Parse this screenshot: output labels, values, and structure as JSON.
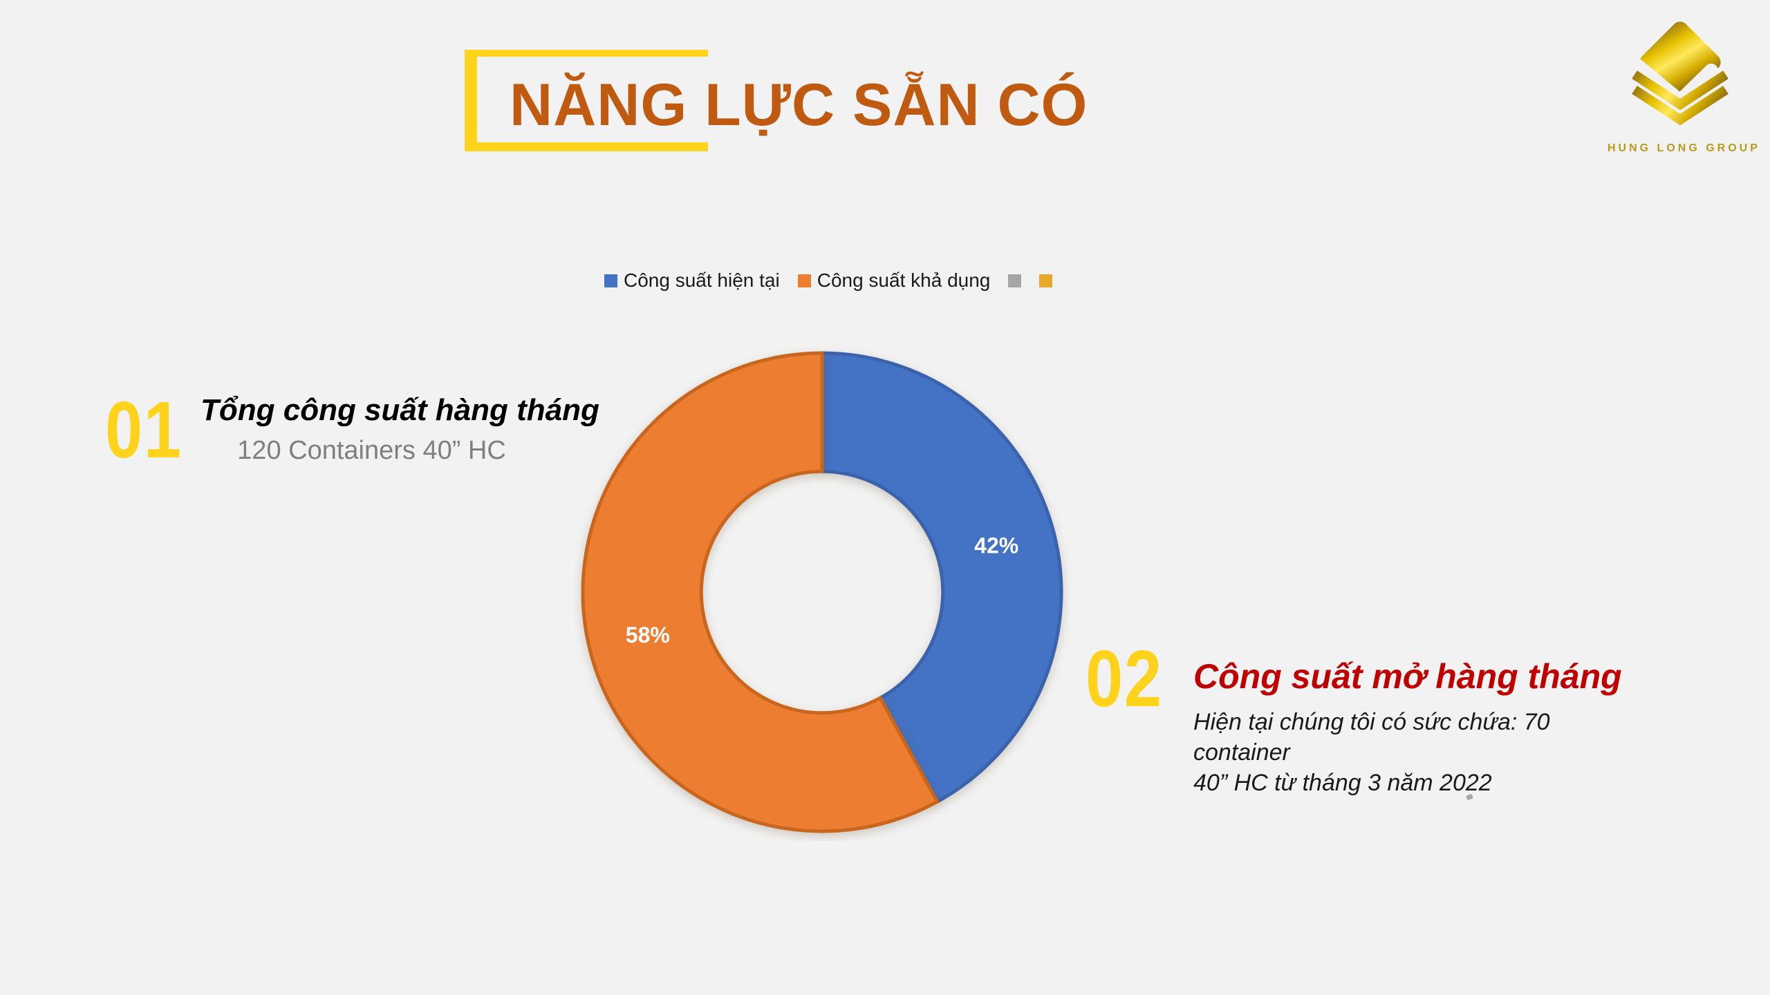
{
  "slide": {
    "background_color": "#F2F2F2",
    "title": "NĂNG LỰC SẴN CÓ",
    "title_color": "#C05A11",
    "bracket_color": "#FFD21C"
  },
  "logo": {
    "company_name": "HUNG LONG GROUP",
    "text_color": "#B99B19",
    "gold_dark": "#8F6E0E",
    "gold_bright": "#FFE95C"
  },
  "legend": {
    "items": [
      {
        "label": "Công suất hiện tại",
        "color": "#4472C4"
      },
      {
        "label": "Công suất khả dụng",
        "color": "#ED7D31"
      },
      {
        "label": "",
        "color": "#A6A6A6"
      },
      {
        "label": "",
        "color": "#E9A82B"
      }
    ]
  },
  "chart_data": {
    "type": "pie",
    "subtype": "donut",
    "title": "",
    "categories": [
      "Công suất hiện tại",
      "Công suất khả dụng"
    ],
    "values": [
      42,
      58
    ],
    "segments": [
      {
        "name": "Công suất hiện tại",
        "value": 42,
        "label": "42%",
        "color": "#4472C4",
        "stroke": "#3B63AC"
      },
      {
        "name": "Công suất khả dụng",
        "value": 58,
        "label": "58%",
        "color": "#ED7D31",
        "stroke": "#C9661E"
      }
    ],
    "start_angle_deg": 0,
    "direction": "clockwise",
    "hole_ratio": 0.505,
    "data_label_color": "#FFFFFF",
    "legend_position": "top"
  },
  "items": [
    {
      "number": "01",
      "number_color": "#FFD21C",
      "heading": "Tổng công suất hàng tháng",
      "heading_color": "#000000",
      "description": "120 Containers 40” HC",
      "description_color": "#7F7F7F"
    },
    {
      "number": "02",
      "number_color": "#FFD21C",
      "heading": "Công suất mở hàng tháng",
      "heading_color": "#C00000",
      "description": "Hiện tại chúng tôi có sức chứa: 70 container\n40” HC từ tháng 3 năm 2022",
      "description_color": "#1A1A1A"
    }
  ]
}
